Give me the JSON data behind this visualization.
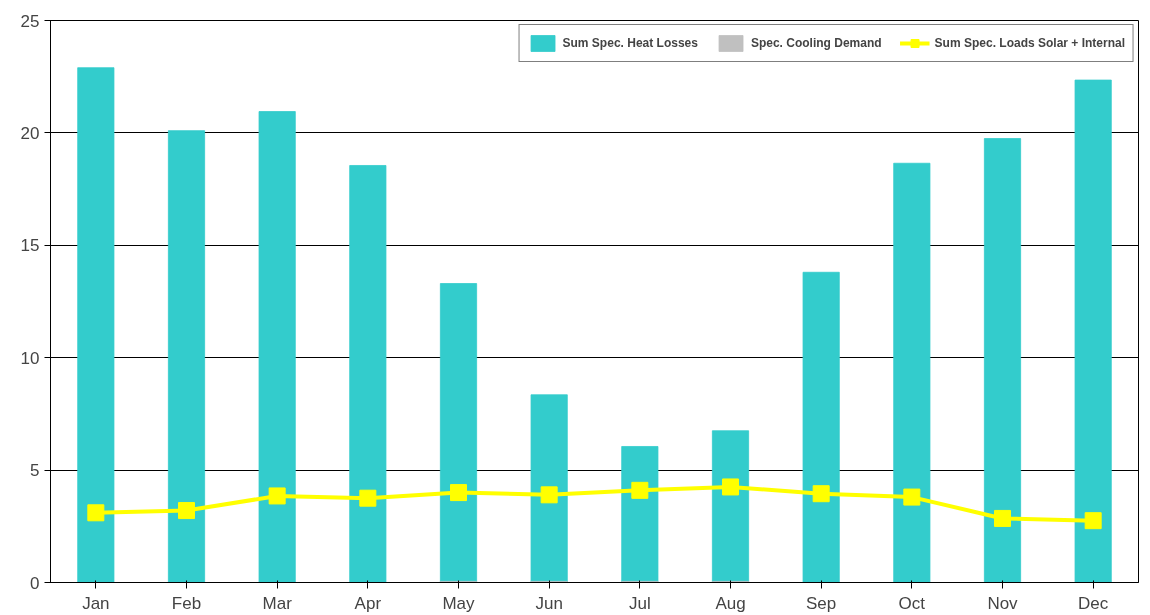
{
  "chart_data": {
    "type": "bar",
    "categories": [
      "Jan",
      "Feb",
      "Mar",
      "Apr",
      "May",
      "Jun",
      "Jul",
      "Aug",
      "Sep",
      "Oct",
      "Nov",
      "Dec"
    ],
    "series": [
      {
        "name": "Sum Spec. Heat Losses",
        "color": "#33cccc",
        "values": [
          22.9,
          20.1,
          20.95,
          18.55,
          13.3,
          8.35,
          6.05,
          6.75,
          13.8,
          18.65,
          19.75,
          22.35
        ]
      },
      {
        "name": "Spec. Cooling Demand",
        "color": "#c0c0c0",
        "values": [
          null,
          null,
          null,
          null,
          0.05,
          0.05,
          0.05,
          0.05,
          null,
          null,
          null,
          null
        ]
      },
      {
        "name": "Sum Spec. Loads Solar + Internal",
        "color": "#ffff00",
        "type": "line",
        "marker": "square",
        "values": [
          3.1,
          3.2,
          3.85,
          3.75,
          4.0,
          3.9,
          4.1,
          4.25,
          3.95,
          3.8,
          2.85,
          2.75
        ]
      }
    ],
    "ylim": [
      0,
      25
    ],
    "yticks": [
      0,
      5,
      10,
      15,
      20,
      25
    ],
    "grid": "y",
    "legend": "top right"
  }
}
